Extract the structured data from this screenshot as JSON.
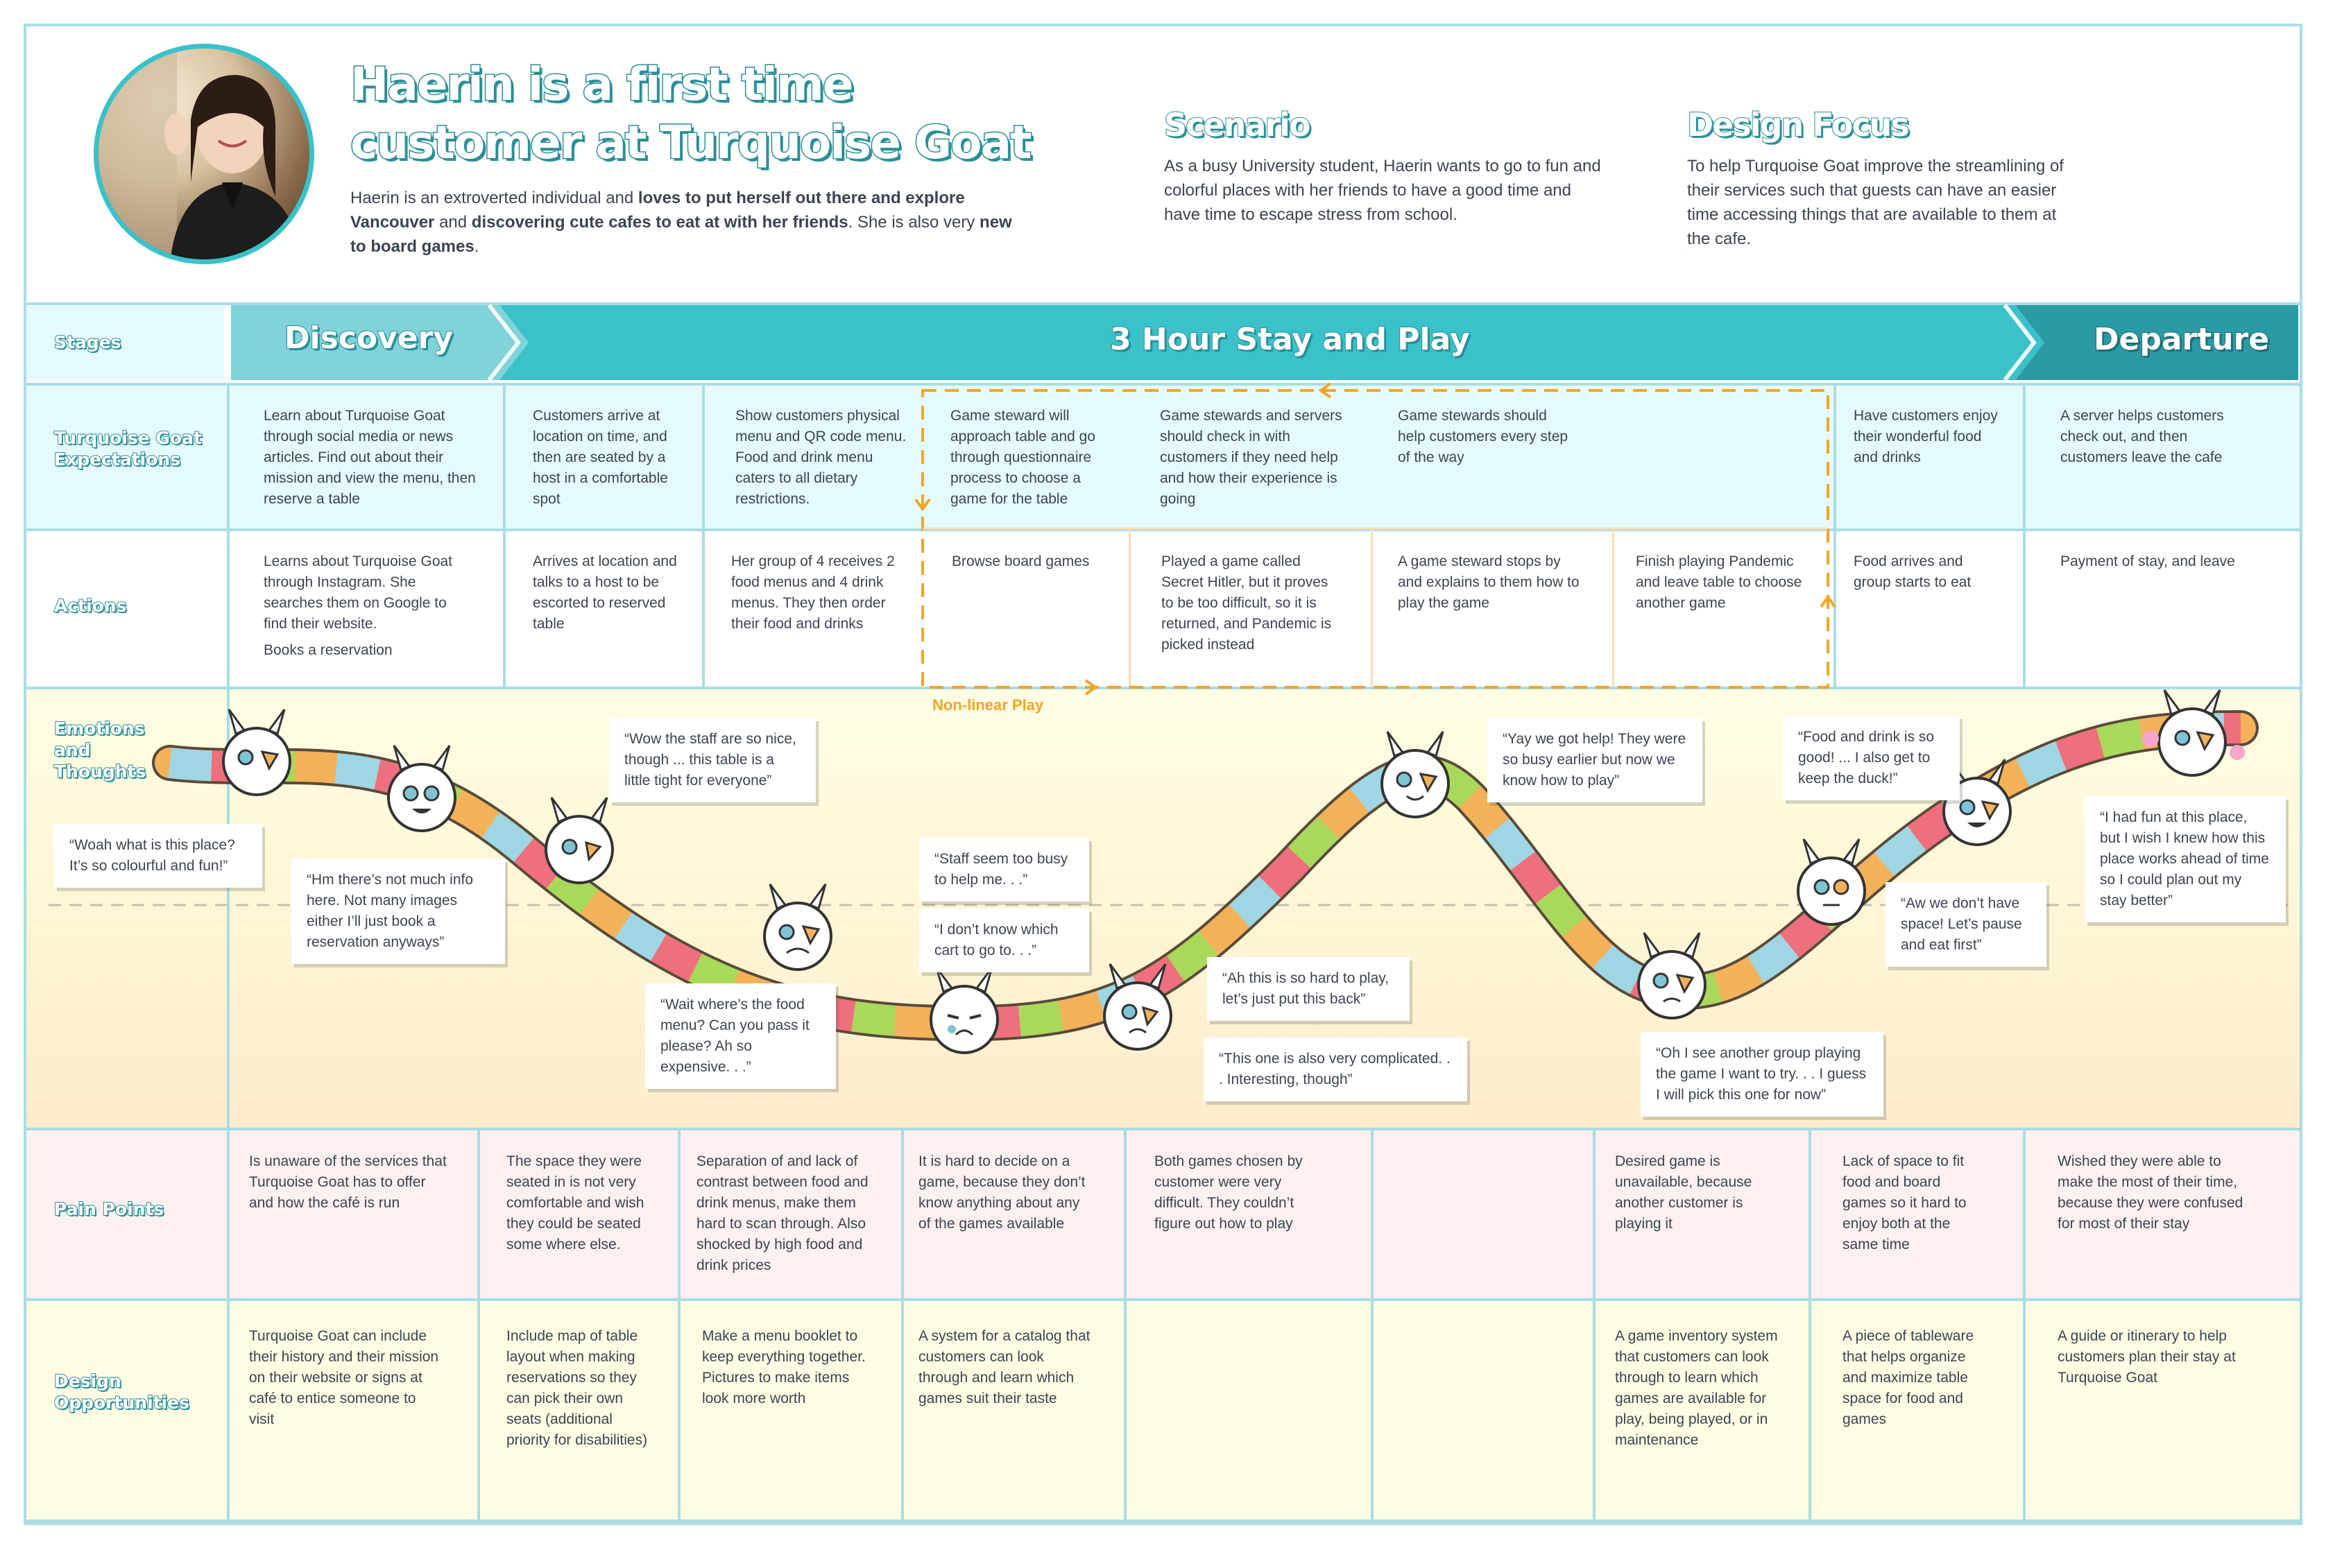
{
  "header": {
    "title_line1": "Haerin is a first time",
    "title_line2": "customer at Turquoise Goat",
    "bio": [
      "Haerin is an extroverted individual and ",
      "loves to put herself out there and explore Vancouver",
      " and ",
      "discovering cute cafes to eat at with her friends",
      ". She is also very ",
      "new to board games",
      "."
    ],
    "scenario_title": "Scenario",
    "scenario_text": "As a busy University student, Haerin wants to go to fun and colorful places with her friends to have a good time and have time to escape stress from school.",
    "focus_title": "Design Focus",
    "focus_text": "To help Turquoise Goat improve the streamlining of their services such that guests can have an easier time accessing things that are available to them at the cafe."
  },
  "rows": {
    "stages": "Stages",
    "expectations": "Turquoise Goat Expectations",
    "actions": "Actions",
    "emotions": "Emotions and Thoughts",
    "pain": "Pain Points",
    "opportunities": "Design Opportunities"
  },
  "stages": [
    "Discovery",
    "3 Hour Stay and Play",
    "Departure"
  ],
  "expectations": [
    "Learn about Turquoise Goat through social media or news articles. Find out about their mission and view the menu, then reserve a table",
    "Customers arrive at location on time, and then are seated by a host in a comfortable spot",
    "Show customers physical menu and QR code menu. Food and drink menu caters to all dietary restrictions.",
    "Game steward will approach table and go through questionnaire process to choose a game for the table",
    "Game stewards and servers should check in with customers if they need help and how their experience is going",
    "Game stewards should help customers every step of the way",
    "",
    "Have customers enjoy their wonderful food and drinks",
    "A server helps customers check out, and then customers leave the cafe"
  ],
  "actions": [
    "Learns about Turquoise Goat through Instagram. She searches them on Google to find their website.",
    "Books a reservation",
    "Arrives at location and talks to a host to be escorted to reserved table",
    "Her group of 4 receives 2 food menus and 4 drink menus. They then order their food and drinks",
    "Browse board games",
    "Played a game called Secret Hitler, but it proves to be too difficult, so it is returned, and Pandemic is picked instead",
    "A game steward stops by and explains to them how to play the game",
    "Finish playing Pandemic and leave table to choose another game",
    "Food arrives and group starts to eat",
    "Payment of stay, and leave"
  ],
  "nonlinear_label": "Non-linear Play",
  "quotes": [
    "“Woah what is this place? It’s so colourful and fun!”",
    "“Hm there’s not much info here. Not many images either I’ll just book a reservation anyways”",
    "“Wow the staff are so nice, though ... this table is a little tight for everyone”",
    "“Wait where’s the food menu? Can you pass it please? Ah so expensive. . .”",
    "“Staff seem too busy to help me. . .”",
    "“I don’t know which cart to go to. . .”",
    "“Ah this is so hard to play, let’s just put this back”",
    "“This one is also very complicated. . . Interesting, though”",
    "“Yay we got help! They were so busy earlier but now we know how to play”",
    "“Oh I see another group playing the game I want to try. . . I guess I will pick this one for now”",
    "“Food and drink is so good! ... I also get to keep the duck!”",
    "“Aw we don’t have space! Let’s pause and eat first”",
    "“I had fun at this place, but I wish I knew how this place works ahead of time so I could plan out my stay better”"
  ],
  "pain_points": [
    "Is unaware of the services that Turquoise Goat has to offer and how the café is run",
    "The space they were seated in is not very comfortable and wish they could be seated some where else.",
    "Separation of and lack of contrast between food and drink menus, make them hard to scan through. Also shocked by high food and drink prices",
    "It is hard to decide on a game, because they don’t know anything about any of the games available",
    "Both games chosen by customer were very difficult. They couldn’t figure out how to play",
    "",
    "Desired game is unavailable, because another customer is playing it",
    "Lack of space to fit food and board games so it hard to enjoy both at the same time",
    "Wished they were able to make the most of their time, because they were confused for most of their stay"
  ],
  "opportunities": [
    "Turquoise Goat can include their history and their mission on their website or signs at café to entice someone to visit",
    "Include map of table layout when making reservations so they can pick their own seats (additional priority for disabilities)",
    "Make a menu booklet to keep everything together. Pictures to make items look more worth",
    "A system for a catalog that customers can look through and learn which games suit their taste",
    "",
    "",
    "A game inventory system that customers can look through to learn which games are available for play, being played, or in maintenance",
    "A piece of tableware that helps organize and maximize table space for food and games",
    "A guide or itinerary to help customers plan their stay at Turquoise Goat"
  ],
  "colors": {
    "teal": "#3ac1ca",
    "teal_dark": "#2a8f98",
    "light_teal": "#e5fbfb",
    "orange": "#f1a627",
    "pink_bg": "#fcf0f0",
    "yellow_bg": "#fefde4"
  }
}
